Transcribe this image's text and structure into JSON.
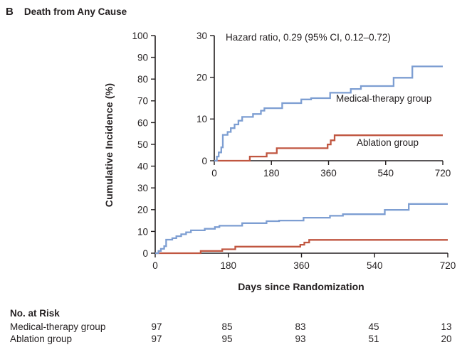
{
  "panel": {
    "letter": "B",
    "title": "Death from Any Cause"
  },
  "chart_data": {
    "type": "line",
    "step": true,
    "title": "Death from Any Cause",
    "xlabel": "Days since Randomization",
    "ylabel": "Cumulative Incidence (%)",
    "xlim": [
      0,
      720
    ],
    "x_ticks": [
      0,
      180,
      360,
      540,
      720
    ],
    "main_axis": {
      "ylim": [
        0,
        100
      ],
      "yticks": [
        0,
        10,
        20,
        30,
        40,
        50,
        60,
        70,
        80,
        90,
        100
      ]
    },
    "inset_axis": {
      "ylim": [
        0,
        30
      ],
      "yticks": [
        0,
        10,
        20,
        30
      ]
    },
    "annotation": "Hazard ratio, 0.29 (95% CI, 0.12–0.72)",
    "legend_position": "inset-right",
    "grid": false,
    "series": [
      {
        "name": "Medical-therapy group",
        "color": "#7d9ed2",
        "points_day_pct": [
          [
            0,
            0
          ],
          [
            8,
            1
          ],
          [
            14,
            2
          ],
          [
            22,
            3.2
          ],
          [
            27,
            6.2
          ],
          [
            42,
            6.9
          ],
          [
            52,
            7.8
          ],
          [
            64,
            8.7
          ],
          [
            76,
            9.6
          ],
          [
            88,
            10.5
          ],
          [
            122,
            11.2
          ],
          [
            147,
            12
          ],
          [
            158,
            12.6
          ],
          [
            214,
            13.8
          ],
          [
            274,
            14.7
          ],
          [
            305,
            15
          ],
          [
            365,
            16.3
          ],
          [
            430,
            17.2
          ],
          [
            462,
            17.9
          ],
          [
            565,
            19.9
          ],
          [
            624,
            22.6
          ]
        ]
      },
      {
        "name": "Ablation group",
        "color": "#c05640",
        "points_day_pct": [
          [
            0,
            0
          ],
          [
            112,
            1
          ],
          [
            165,
            1.8
          ],
          [
            197,
            3
          ],
          [
            357,
            3.9
          ],
          [
            367,
            4.9
          ],
          [
            379,
            6.1
          ]
        ]
      }
    ]
  },
  "no_at_risk": {
    "title": "No. at Risk",
    "rows": [
      {
        "label": "Medical-therapy group",
        "values": [
          "97",
          "85",
          "83",
          "45",
          "13"
        ]
      },
      {
        "label": "Ablation group",
        "values": [
          "97",
          "95",
          "93",
          "51",
          "20"
        ]
      }
    ]
  },
  "colors": {
    "axis": "#231f20",
    "text": "#231f20",
    "medical": "#7d9ed2",
    "ablation": "#c05640"
  }
}
